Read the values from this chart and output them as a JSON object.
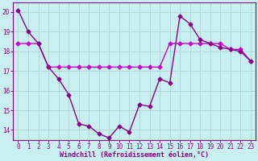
{
  "xlabel": "Windchill (Refroidissement éolien,°C)",
  "bg_color": "#c8f0f0",
  "grid_color": "#b0d8d8",
  "line1_color": "#880088",
  "line2_color": "#cc00cc",
  "line1_x": [
    0,
    1,
    2,
    3,
    4,
    5,
    6,
    7,
    8,
    9,
    10,
    11,
    12,
    13,
    14,
    15,
    16,
    17,
    18,
    19,
    20,
    21,
    22,
    23
  ],
  "line1_y": [
    20.1,
    19.0,
    18.4,
    17.2,
    16.6,
    15.8,
    14.3,
    14.2,
    13.8,
    13.6,
    14.2,
    13.9,
    15.3,
    15.2,
    16.6,
    16.4,
    19.8,
    19.4,
    18.6,
    18.4,
    18.2,
    18.1,
    18.0,
    17.5
  ],
  "line2_x": [
    0,
    1,
    2,
    3,
    4,
    5,
    6,
    7,
    8,
    9,
    10,
    11,
    12,
    13,
    14,
    15,
    16,
    17,
    18,
    19,
    20,
    21,
    22,
    23
  ],
  "line2_y": [
    18.4,
    18.4,
    18.4,
    17.2,
    17.2,
    17.2,
    17.2,
    17.2,
    17.2,
    17.2,
    17.2,
    17.2,
    17.2,
    17.2,
    17.2,
    18.4,
    18.4,
    18.4,
    18.4,
    18.4,
    18.4,
    18.1,
    18.1,
    17.5
  ],
  "xlim": [
    -0.5,
    23.5
  ],
  "ylim": [
    13.5,
    20.5
  ],
  "yticks": [
    14,
    15,
    16,
    17,
    18,
    19,
    20
  ],
  "xticks": [
    0,
    1,
    2,
    3,
    4,
    5,
    6,
    7,
    8,
    9,
    10,
    11,
    12,
    13,
    14,
    15,
    16,
    17,
    18,
    19,
    20,
    21,
    22,
    23
  ],
  "marker": "D",
  "markersize": 2.5,
  "linewidth": 1.0
}
